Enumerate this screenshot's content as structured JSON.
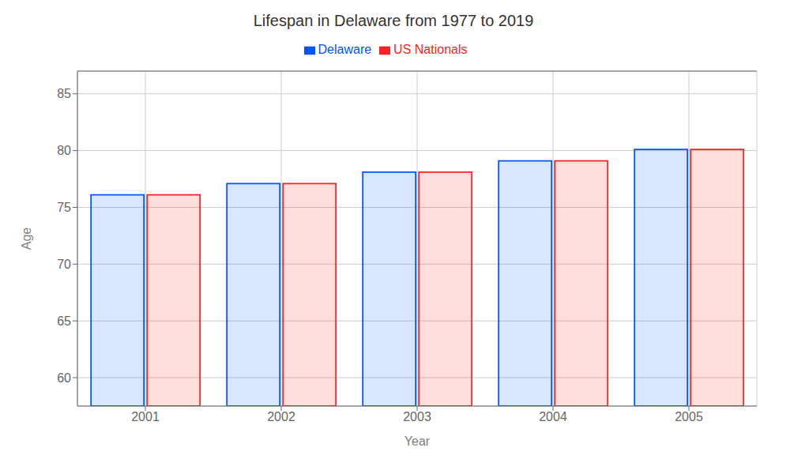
{
  "chart_data": {
    "type": "bar",
    "title": "Lifespan in Delaware from 1977 to 2019",
    "xlabel": "Year",
    "ylabel": "Age",
    "categories": [
      "2001",
      "2002",
      "2003",
      "2004",
      "2005"
    ],
    "series": [
      {
        "name": "Delaware",
        "color": "#0055ff",
        "values": [
          76.1,
          77.1,
          78.1,
          79.1,
          80.1
        ]
      },
      {
        "name": "US Nationals",
        "color": "#ff2222",
        "values": [
          76.1,
          77.1,
          78.1,
          79.1,
          80.1
        ]
      }
    ],
    "ylim": [
      57.5,
      87
    ],
    "yticks": [
      60,
      65,
      70,
      75,
      80,
      85
    ],
    "grid": true,
    "legend": "top"
  }
}
